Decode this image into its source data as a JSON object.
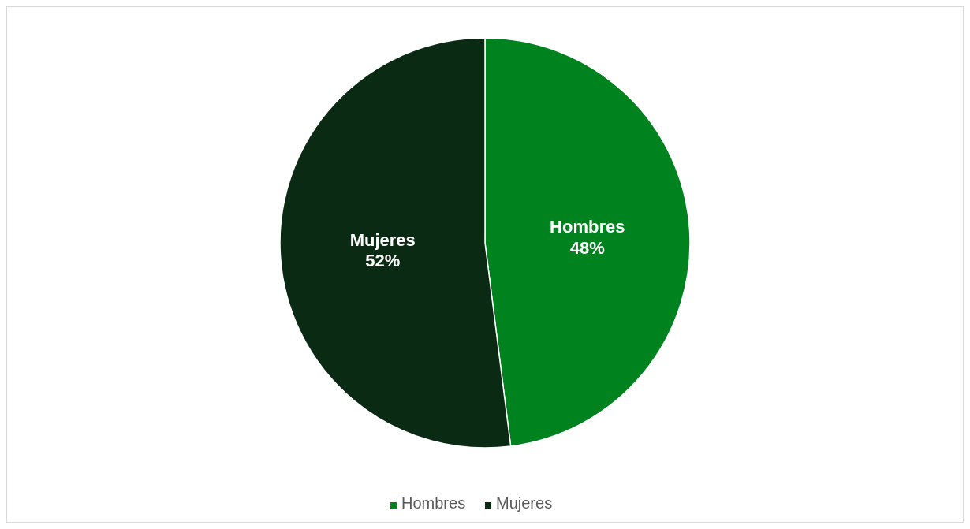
{
  "chart_data": {
    "type": "pie",
    "categories": [
      "Hombres",
      "Mujeres"
    ],
    "values": [
      48,
      52
    ],
    "colors": [
      "#00821e",
      "#0a2a14"
    ],
    "value_labels": [
      "48%",
      "52%"
    ],
    "legend": "bottom"
  }
}
